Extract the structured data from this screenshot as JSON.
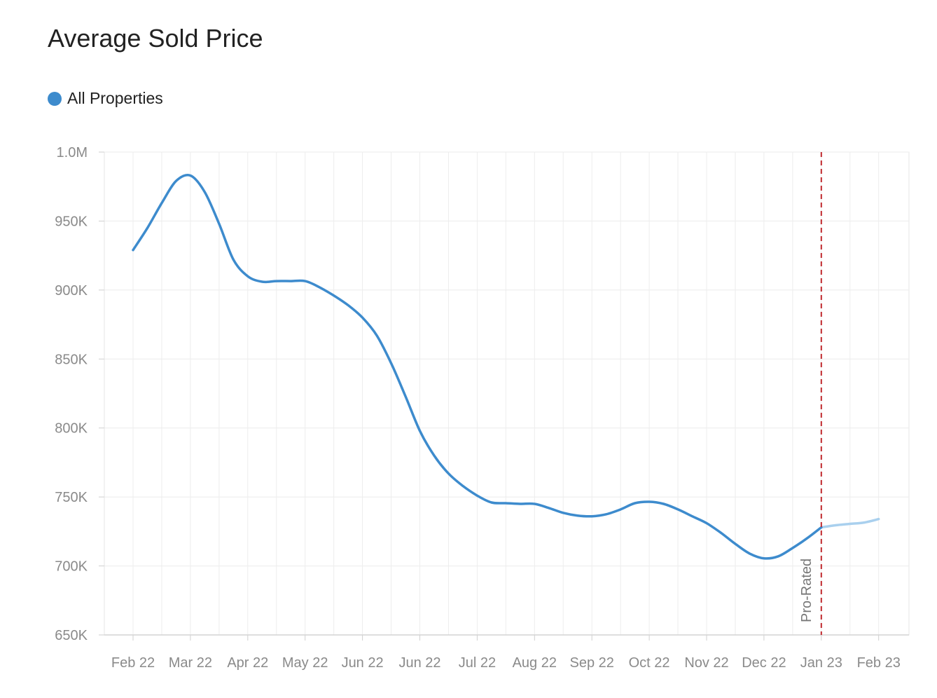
{
  "chart_data": {
    "type": "line",
    "title": "Average Sold Price",
    "xlabel": "",
    "ylabel": "",
    "categories": [
      "Feb 22",
      "Mar 22",
      "Apr 22",
      "May 22",
      "Jun 22",
      "Jun 22",
      "Jul 22",
      "Aug 22",
      "Sep 22",
      "Oct 22",
      "Nov 22",
      "Dec 22",
      "Jan 23",
      "Feb 23"
    ],
    "ylim": [
      650000,
      1000000
    ],
    "yticks": [
      1000000,
      950000,
      900000,
      850000,
      800000,
      750000,
      700000,
      650000
    ],
    "ytick_labels": [
      "1.0M",
      "950K",
      "900K",
      "850K",
      "800K",
      "750K",
      "700K",
      "650K"
    ],
    "grid": true,
    "legend": {
      "position": "top-left",
      "entries": [
        "All Properties"
      ]
    },
    "series": [
      {
        "name": "All Properties",
        "color": "#3d8bcd",
        "projected_color": "#a9d0ee",
        "points": [
          [
            0.0,
            929000
          ],
          [
            0.25,
            945000
          ],
          [
            0.5,
            963000
          ],
          [
            0.75,
            979000
          ],
          [
            1.0,
            983000
          ],
          [
            1.25,
            971000
          ],
          [
            1.5,
            948000
          ],
          [
            1.75,
            922000
          ],
          [
            2.0,
            910000
          ],
          [
            2.25,
            906000
          ],
          [
            2.5,
            906500
          ],
          [
            2.75,
            906500
          ],
          [
            3.0,
            906500
          ],
          [
            3.25,
            902000
          ],
          [
            3.5,
            896000
          ],
          [
            3.75,
            889000
          ],
          [
            4.0,
            880000
          ],
          [
            4.25,
            867000
          ],
          [
            4.5,
            847000
          ],
          [
            4.75,
            823000
          ],
          [
            5.0,
            798000
          ],
          [
            5.25,
            780000
          ],
          [
            5.5,
            767000
          ],
          [
            5.75,
            758000
          ],
          [
            6.0,
            751000
          ],
          [
            6.25,
            746000
          ],
          [
            6.5,
            745500
          ],
          [
            6.75,
            745000
          ],
          [
            7.0,
            745000
          ],
          [
            7.25,
            742000
          ],
          [
            7.5,
            738500
          ],
          [
            7.75,
            736500
          ],
          [
            8.0,
            736000
          ],
          [
            8.25,
            737500
          ],
          [
            8.5,
            741000
          ],
          [
            8.75,
            745500
          ],
          [
            9.0,
            746500
          ],
          [
            9.25,
            745000
          ],
          [
            9.5,
            741000
          ],
          [
            9.75,
            736000
          ],
          [
            10.0,
            731000
          ],
          [
            10.25,
            724000
          ],
          [
            10.5,
            716000
          ],
          [
            10.75,
            709000
          ],
          [
            11.0,
            705500
          ],
          [
            11.25,
            707000
          ],
          [
            11.5,
            713000
          ],
          [
            11.75,
            720000
          ],
          [
            12.0,
            728000
          ]
        ],
        "projected_points": [
          [
            12.0,
            728000
          ],
          [
            12.25,
            729500
          ],
          [
            12.5,
            730500
          ],
          [
            12.75,
            731500
          ],
          [
            13.0,
            734000
          ]
        ]
      }
    ],
    "annotations": [
      {
        "type": "vline",
        "x": 12.0,
        "color": "#c0282d",
        "style": "dashed",
        "label": "Pro-Rated"
      }
    ]
  }
}
